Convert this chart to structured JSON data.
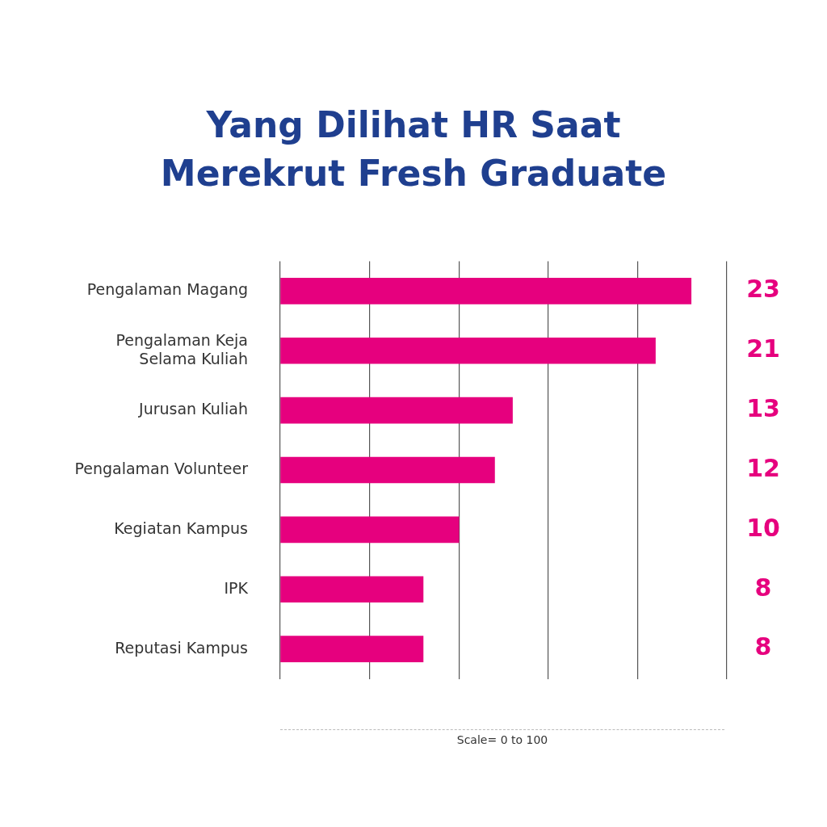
{
  "chart_data": {
    "type": "bar",
    "orientation": "horizontal",
    "title": "Yang Dilihat HR Saat Merekrut Fresh Graduate",
    "categories": [
      "Pengalaman Magang",
      "Pengalaman Keja Selama Kuliah",
      "Jurusan Kuliah",
      "Pengalaman Volunteer",
      "Kegiatan Kampus",
      "IPK",
      "Reputasi Kampus"
    ],
    "values": [
      23,
      21,
      13,
      12,
      10,
      8,
      8
    ],
    "color": "#e6007e",
    "xlim": [
      0,
      25
    ],
    "xticks": [
      {
        "value": 0,
        "label": null
      },
      {
        "value": 5,
        "label": null
      },
      {
        "value": 10,
        "label": null
      },
      {
        "value": 15,
        "label": null
      },
      {
        "value": 20,
        "label": null
      },
      {
        "value": 25,
        "label": null
      }
    ],
    "grid": "x",
    "tick_labels": "y",
    "data_labels": true,
    "annotations": [
      "Scale= 0 to 100"
    ]
  }
}
